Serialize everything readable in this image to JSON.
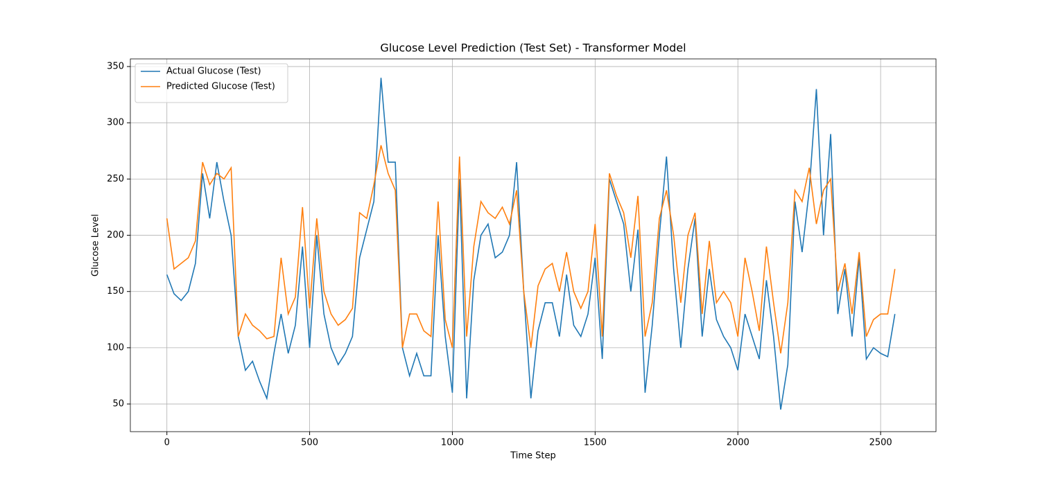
{
  "chart_data": {
    "type": "line",
    "title": "Glucose Level Prediction (Test Set) - Transformer Model",
    "xlabel": "Time Step",
    "ylabel": "Glucose Level",
    "x": [
      0,
      25,
      50,
      75,
      100,
      125,
      150,
      175,
      200,
      225,
      250,
      275,
      300,
      325,
      350,
      375,
      400,
      425,
      450,
      475,
      500,
      525,
      550,
      575,
      600,
      625,
      650,
      675,
      700,
      725,
      750,
      775,
      800,
      825,
      850,
      875,
      900,
      925,
      950,
      975,
      1000,
      1025,
      1050,
      1075,
      1100,
      1125,
      1150,
      1175,
      1200,
      1225,
      1250,
      1275,
      1300,
      1325,
      1350,
      1375,
      1400,
      1425,
      1450,
      1475,
      1500,
      1525,
      1550,
      1575,
      1600,
      1625,
      1650,
      1675,
      1700,
      1725,
      1750,
      1775,
      1800,
      1825,
      1850,
      1875,
      1900,
      1925,
      1950,
      1975,
      2000,
      2025,
      2050,
      2075,
      2100,
      2125,
      2150,
      2175,
      2200,
      2225,
      2250,
      2275,
      2300,
      2325,
      2350,
      2375,
      2400,
      2425,
      2450,
      2475,
      2500,
      2525,
      2550
    ],
    "series": [
      {
        "name": "Actual Glucose (Test)",
        "color": "#1f77b4",
        "values": [
          165,
          148,
          142,
          150,
          175,
          255,
          215,
          265,
          230,
          200,
          110,
          80,
          88,
          70,
          55,
          95,
          130,
          95,
          120,
          190,
          100,
          200,
          130,
          100,
          85,
          95,
          110,
          180,
          205,
          230,
          340,
          265,
          265,
          100,
          75,
          95,
          75,
          75,
          200,
          110,
          60,
          250,
          55,
          160,
          200,
          210,
          180,
          185,
          200,
          265,
          150,
          55,
          115,
          140,
          140,
          110,
          165,
          120,
          110,
          130,
          180,
          90,
          250,
          230,
          210,
          150,
          205,
          60,
          120,
          200,
          270,
          170,
          100,
          170,
          215,
          110,
          170,
          125,
          110,
          100,
          80,
          130,
          110,
          90,
          160,
          110,
          45,
          85,
          230,
          185,
          240,
          330,
          200,
          290,
          130,
          170,
          110,
          180,
          90,
          100,
          95,
          92,
          130
        ]
      },
      {
        "name": "Predicted Glucose (Test)",
        "color": "#ff7f0e",
        "values": [
          215,
          170,
          175,
          180,
          195,
          265,
          245,
          255,
          250,
          260,
          110,
          130,
          120,
          115,
          108,
          110,
          180,
          130,
          145,
          225,
          135,
          215,
          150,
          130,
          120,
          125,
          135,
          220,
          215,
          245,
          280,
          255,
          240,
          100,
          130,
          130,
          115,
          110,
          230,
          125,
          100,
          270,
          110,
          190,
          230,
          220,
          215,
          225,
          210,
          240,
          150,
          100,
          155,
          170,
          175,
          150,
          185,
          150,
          135,
          150,
          210,
          110,
          255,
          235,
          220,
          180,
          235,
          110,
          140,
          215,
          240,
          200,
          140,
          200,
          220,
          130,
          195,
          140,
          150,
          140,
          110,
          180,
          150,
          115,
          190,
          140,
          95,
          140,
          240,
          230,
          260,
          210,
          240,
          250,
          150,
          175,
          130,
          185,
          110,
          125,
          130,
          130,
          170
        ]
      }
    ],
    "xlim": [
      -128,
      2694
    ],
    "ylim": [
      25.4,
      356.8
    ],
    "xticks": [
      0,
      500,
      1000,
      1500,
      2000,
      2500
    ],
    "yticks": [
      50,
      100,
      150,
      200,
      250,
      300,
      350
    ],
    "grid": true,
    "legend": "upper left"
  }
}
